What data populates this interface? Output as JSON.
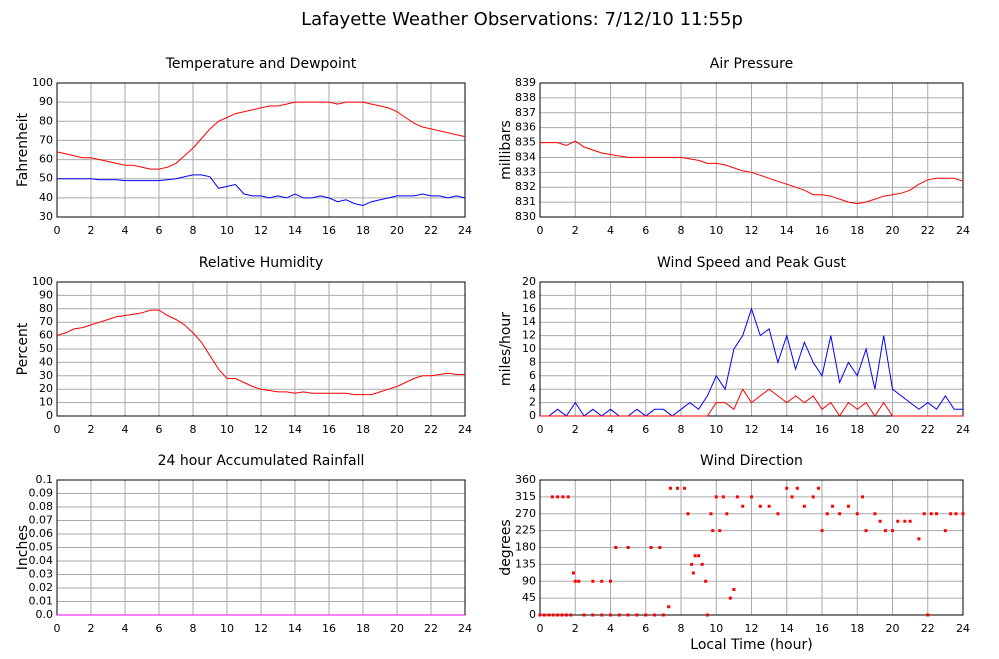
{
  "title": "Lafayette Weather Observations: 7/12/10 11:55p",
  "chart_data": [
    {
      "type": "line",
      "title": "Temperature and Dewpoint",
      "ylabel": "Fahrenheit",
      "x": [
        0,
        0.5,
        1,
        1.5,
        2,
        2.5,
        3,
        3.5,
        4,
        4.5,
        5,
        5.5,
        6,
        6.5,
        7,
        7.5,
        8,
        8.5,
        9,
        9.5,
        10,
        10.5,
        11,
        11.5,
        12,
        12.5,
        13,
        13.5,
        14,
        14.5,
        15,
        15.5,
        16,
        16.5,
        17,
        17.5,
        18,
        18.5,
        19,
        19.5,
        20,
        20.5,
        21,
        21.5,
        22,
        22.5,
        23,
        23.5,
        24
      ],
      "series": [
        {
          "color": "#ff0000",
          "values": [
            64,
            63,
            62,
            61,
            61,
            60,
            59,
            58,
            57,
            57,
            56,
            55,
            55,
            56,
            58,
            62,
            66,
            71,
            76,
            80,
            82,
            84,
            85,
            86,
            87,
            88,
            88,
            89,
            90,
            90,
            90,
            90,
            90,
            89,
            90,
            90,
            90,
            89,
            88,
            87,
            85,
            82,
            79,
            77,
            76,
            75,
            74,
            73,
            72
          ]
        },
        {
          "color": "#0000ff",
          "values": [
            50,
            50,
            50,
            50,
            50,
            49.5,
            49.5,
            49.5,
            49,
            49,
            49,
            49,
            49,
            49.5,
            50,
            51,
            52,
            52,
            51,
            45,
            46,
            47,
            42,
            41,
            41,
            40,
            41,
            40,
            42,
            40,
            40,
            41,
            40,
            38,
            39,
            37,
            36,
            38,
            39,
            40,
            41,
            41,
            41,
            42,
            41,
            41,
            40,
            41,
            40
          ]
        }
      ],
      "xlim": [
        0,
        24
      ],
      "xticks": [
        0,
        2,
        4,
        6,
        8,
        10,
        12,
        14,
        16,
        18,
        20,
        22,
        24
      ],
      "ylim": [
        30,
        100
      ],
      "yticks": [
        30,
        40,
        50,
        60,
        70,
        80,
        90,
        100
      ],
      "grid": true
    },
    {
      "type": "line",
      "title": "Air Pressure",
      "ylabel": "millibars",
      "x": [
        0,
        0.5,
        1,
        1.5,
        2,
        2.5,
        3,
        3.5,
        4,
        4.5,
        5,
        5.5,
        6,
        6.5,
        7,
        7.5,
        8,
        8.5,
        9,
        9.5,
        10,
        10.5,
        11,
        11.5,
        12,
        12.5,
        13,
        13.5,
        14,
        14.5,
        15,
        15.5,
        16,
        16.5,
        17,
        17.5,
        18,
        18.5,
        19,
        19.5,
        20,
        20.5,
        21,
        21.5,
        22,
        22.5,
        23,
        23.5,
        24
      ],
      "series": [
        {
          "color": "#ff0000",
          "values": [
            835,
            835,
            835,
            834.8,
            835.1,
            834.7,
            834.5,
            834.3,
            834.2,
            834.1,
            834,
            834,
            834,
            834,
            834,
            834,
            834,
            833.9,
            833.8,
            833.6,
            833.6,
            833.5,
            833.3,
            833.1,
            833,
            832.8,
            832.6,
            832.4,
            832.2,
            832,
            831.8,
            831.5,
            831.5,
            831.4,
            831.2,
            831,
            830.9,
            831,
            831.2,
            831.4,
            831.5,
            831.6,
            831.8,
            832.2,
            832.5,
            832.6,
            832.6,
            832.6,
            832.4
          ]
        }
      ],
      "xlim": [
        0,
        24
      ],
      "xticks": [
        0,
        2,
        4,
        6,
        8,
        10,
        12,
        14,
        16,
        18,
        20,
        22,
        24
      ],
      "ylim": [
        830,
        839
      ],
      "yticks": [
        830,
        831,
        832,
        833,
        834,
        835,
        836,
        837,
        838,
        839
      ],
      "grid": true
    },
    {
      "type": "line",
      "title": "Relative Humidity",
      "ylabel": "Percent",
      "x": [
        0,
        0.5,
        1,
        1.5,
        2,
        2.5,
        3,
        3.5,
        4,
        4.5,
        5,
        5.5,
        6,
        6.5,
        7,
        7.5,
        8,
        8.5,
        9,
        9.5,
        10,
        10.5,
        11,
        11.5,
        12,
        12.5,
        13,
        13.5,
        14,
        14.5,
        15,
        15.5,
        16,
        16.5,
        17,
        17.5,
        18,
        18.5,
        19,
        19.5,
        20,
        20.5,
        21,
        21.5,
        22,
        22.5,
        23,
        23.5,
        24
      ],
      "series": [
        {
          "color": "#ff0000",
          "values": [
            60,
            62,
            65,
            66,
            68,
            70,
            72,
            74,
            75,
            76,
            77,
            79,
            79,
            75,
            72,
            68,
            62,
            55,
            45,
            35,
            28,
            28,
            25,
            22,
            20,
            19,
            18,
            18,
            17,
            18,
            17,
            17,
            17,
            17,
            17,
            16,
            16,
            16,
            18,
            20,
            22,
            25,
            28,
            30,
            30,
            31,
            32,
            31,
            31
          ]
        }
      ],
      "xlim": [
        0,
        24
      ],
      "xticks": [
        0,
        2,
        4,
        6,
        8,
        10,
        12,
        14,
        16,
        18,
        20,
        22,
        24
      ],
      "ylim": [
        0,
        100
      ],
      "yticks": [
        0,
        10,
        20,
        30,
        40,
        50,
        60,
        70,
        80,
        90,
        100
      ],
      "grid": true
    },
    {
      "type": "line",
      "title": "Wind Speed and Peak Gust",
      "ylabel": "miles/hour",
      "x": [
        0,
        0.5,
        1,
        1.5,
        2,
        2.5,
        3,
        3.5,
        4,
        4.5,
        5,
        5.5,
        6,
        6.5,
        7,
        7.5,
        8,
        8.5,
        9,
        9.5,
        10,
        10.5,
        11,
        11.5,
        12,
        12.5,
        13,
        13.5,
        14,
        14.5,
        15,
        15.5,
        16,
        16.5,
        17,
        17.5,
        18,
        18.5,
        19,
        19.5,
        20,
        20.5,
        21,
        21.5,
        22,
        22.5,
        23,
        23.5,
        24
      ],
      "series": [
        {
          "color": "#0000ff",
          "values": [
            0,
            0,
            1,
            0,
            2,
            0,
            1,
            0,
            1,
            0,
            0,
            1,
            0,
            1,
            1,
            0,
            1,
            2,
            1,
            3,
            6,
            4,
            10,
            12,
            16,
            12,
            13,
            8,
            12,
            7,
            11,
            8,
            6,
            12,
            5,
            8,
            6,
            10,
            4,
            12,
            4,
            3,
            2,
            1,
            2,
            1,
            3,
            1,
            1
          ]
        },
        {
          "color": "#ff0000",
          "values": [
            0,
            0,
            0,
            0,
            0,
            0,
            0,
            0,
            0,
            0,
            0,
            0,
            0,
            0,
            0,
            0,
            0,
            0,
            0,
            0,
            2,
            2,
            1,
            4,
            2,
            3,
            4,
            3,
            2,
            3,
            2,
            3,
            1,
            2,
            0,
            2,
            1,
            2,
            0,
            2,
            0,
            0,
            0,
            0,
            0,
            0,
            0,
            0,
            0
          ]
        }
      ],
      "xlim": [
        0,
        24
      ],
      "xticks": [
        0,
        2,
        4,
        6,
        8,
        10,
        12,
        14,
        16,
        18,
        20,
        22,
        24
      ],
      "ylim": [
        0,
        20
      ],
      "yticks": [
        0,
        2,
        4,
        6,
        8,
        10,
        12,
        14,
        16,
        18,
        20
      ],
      "grid": true
    },
    {
      "type": "line",
      "title": "24 hour Accumulated Rainfall",
      "ylabel": "Inches",
      "x": [
        0,
        24
      ],
      "series": [
        {
          "color": "#ff00ff",
          "values": [
            0,
            0
          ]
        }
      ],
      "xlim": [
        0,
        24
      ],
      "xticks": [
        0,
        2,
        4,
        6,
        8,
        10,
        12,
        14,
        16,
        18,
        20,
        22,
        24
      ],
      "ylim": [
        0,
        0.1
      ],
      "yticks": [
        {
          "value": 0,
          "label": "0.0"
        },
        0.01,
        0.02,
        0.03,
        0.04,
        0.05,
        0.06,
        0.07,
        0.08,
        0.09,
        0.1
      ],
      "grid": true
    },
    {
      "type": "scatter",
      "title": "Wind Direction",
      "ylabel": "degrees",
      "xlabel": "Local Time (hour)",
      "x": [
        0,
        0.25,
        0.5,
        0.75,
        1,
        1.25,
        1.5,
        1.75,
        0.7,
        1,
        1.3,
        1.6,
        1.9,
        2,
        2.2,
        2.5,
        3,
        3.5,
        4,
        3,
        3.5,
        4,
        4.3,
        4.5,
        5,
        5.5,
        6,
        6.5,
        7,
        5,
        6.3,
        6.8,
        7.3,
        7.4,
        7.8,
        8.2,
        8.4,
        8.6,
        8.7,
        8.8,
        9,
        9.2,
        9.4,
        9.5,
        9.7,
        9.8,
        10,
        10.2,
        10.4,
        10.6,
        10.8,
        11,
        11.2,
        11.5,
        12,
        12.5,
        13,
        13.5,
        14,
        14.3,
        14.6,
        15,
        15.5,
        15.8,
        16,
        16.3,
        16.6,
        17,
        17.5,
        18,
        18.3,
        18.5,
        19,
        19.3,
        19.6,
        20,
        20.3,
        20.7,
        21,
        21.5,
        21.8,
        22,
        22.2,
        22.5,
        23,
        23.3,
        23.6,
        24
      ],
      "series": [
        {
          "color": "#ff0000",
          "values": [
            0,
            0,
            0,
            0,
            0,
            0,
            0,
            0,
            315,
            315,
            315,
            315,
            112,
            90,
            90,
            0,
            0,
            0,
            0,
            90,
            90,
            90,
            180,
            0,
            0,
            0,
            0,
            0,
            0,
            180,
            180,
            180,
            22,
            338,
            338,
            338,
            270,
            135,
            112,
            158,
            158,
            135,
            90,
            0,
            270,
            225,
            315,
            225,
            315,
            270,
            45,
            68,
            315,
            290,
            315,
            290,
            290,
            270,
            338,
            315,
            338,
            290,
            315,
            338,
            225,
            270,
            290,
            270,
            290,
            270,
            315,
            225,
            270,
            250,
            225,
            225,
            250,
            250,
            250,
            203,
            270,
            0,
            270,
            270,
            225,
            270,
            270,
            270
          ]
        }
      ],
      "xlim": [
        0,
        24
      ],
      "xticks": [
        0,
        2,
        4,
        6,
        8,
        10,
        12,
        14,
        16,
        18,
        20,
        22,
        24
      ],
      "ylim": [
        0,
        360
      ],
      "yticks": [
        0,
        45,
        90,
        135,
        180,
        225,
        270,
        315,
        360
      ],
      "grid": true
    }
  ]
}
